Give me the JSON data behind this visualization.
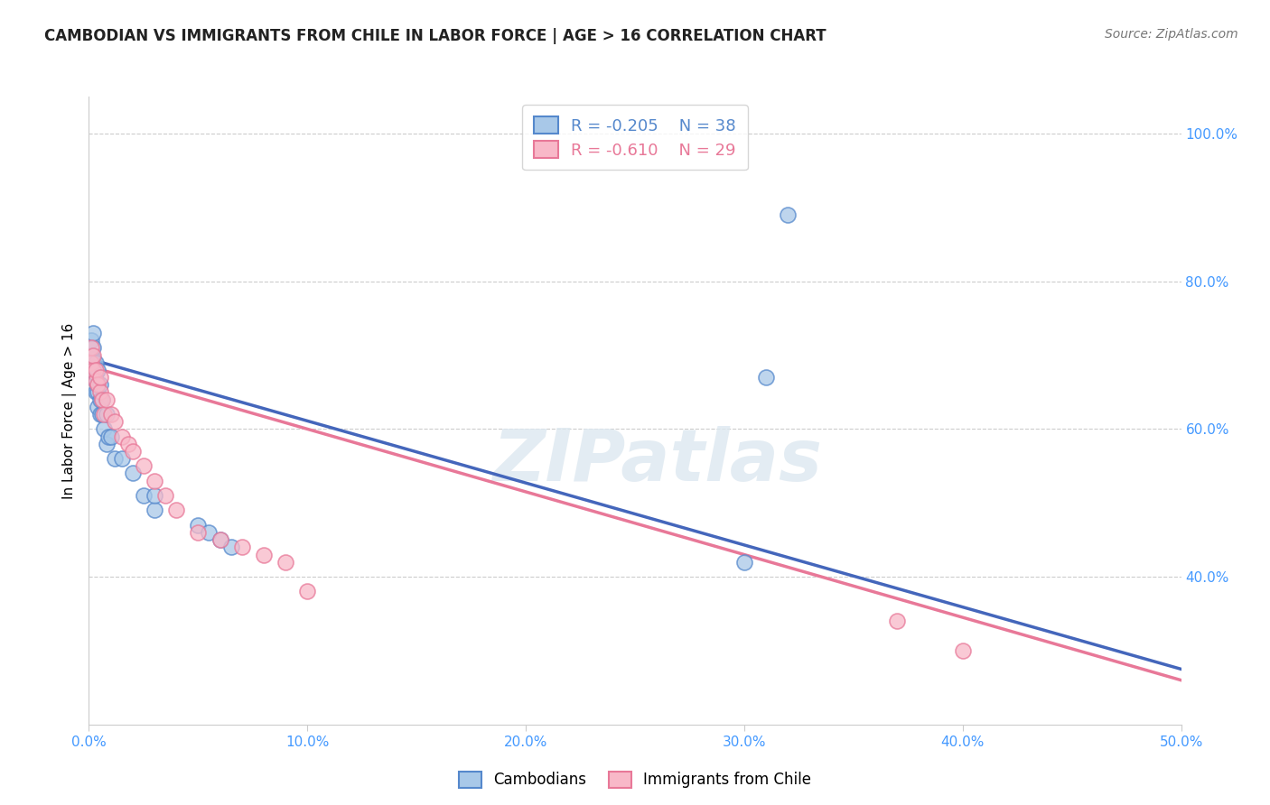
{
  "title": "CAMBODIAN VS IMMIGRANTS FROM CHILE IN LABOR FORCE | AGE > 16 CORRELATION CHART",
  "source": "Source: ZipAtlas.com",
  "ylabel": "In Labor Force | Age > 16",
  "xlim": [
    0.0,
    0.5
  ],
  "ylim": [
    0.2,
    1.05
  ],
  "xticks": [
    0.0,
    0.1,
    0.2,
    0.3,
    0.4,
    0.5
  ],
  "xtick_labels": [
    "0.0%",
    "10.0%",
    "20.0%",
    "30.0%",
    "40.0%",
    "50.0%"
  ],
  "yticks_right": [
    0.4,
    0.6,
    0.8,
    1.0
  ],
  "ytick_labels_right": [
    "40.0%",
    "60.0%",
    "80.0%",
    "100.0%"
  ],
  "blue_fill": "#A8C8E8",
  "blue_edge": "#5588CC",
  "pink_fill": "#F8B8C8",
  "pink_edge": "#E87898",
  "blue_line": "#4466BB",
  "pink_line": "#E87898",
  "legend_label_blue": "Cambodians",
  "legend_label_pink": "Immigrants from Chile",
  "watermark": "ZIPatlas",
  "cambodian_x": [
    0.001,
    0.001,
    0.001,
    0.002,
    0.002,
    0.002,
    0.002,
    0.003,
    0.003,
    0.003,
    0.003,
    0.004,
    0.004,
    0.004,
    0.004,
    0.005,
    0.005,
    0.005,
    0.006,
    0.006,
    0.007,
    0.008,
    0.008,
    0.009,
    0.01,
    0.012,
    0.015,
    0.02,
    0.025,
    0.03,
    0.03,
    0.05,
    0.055,
    0.06,
    0.065,
    0.3,
    0.31,
    0.32
  ],
  "cambodian_y": [
    0.69,
    0.7,
    0.72,
    0.68,
    0.695,
    0.71,
    0.73,
    0.65,
    0.665,
    0.675,
    0.69,
    0.63,
    0.65,
    0.66,
    0.68,
    0.62,
    0.64,
    0.66,
    0.62,
    0.64,
    0.6,
    0.58,
    0.62,
    0.59,
    0.59,
    0.56,
    0.56,
    0.54,
    0.51,
    0.49,
    0.51,
    0.47,
    0.46,
    0.45,
    0.44,
    0.42,
    0.67,
    0.89
  ],
  "chile_x": [
    0.001,
    0.001,
    0.002,
    0.002,
    0.003,
    0.003,
    0.004,
    0.005,
    0.005,
    0.006,
    0.007,
    0.008,
    0.01,
    0.012,
    0.015,
    0.018,
    0.02,
    0.025,
    0.03,
    0.035,
    0.04,
    0.05,
    0.06,
    0.07,
    0.08,
    0.09,
    0.1,
    0.37,
    0.4
  ],
  "chile_y": [
    0.69,
    0.71,
    0.68,
    0.7,
    0.665,
    0.68,
    0.66,
    0.65,
    0.67,
    0.64,
    0.62,
    0.64,
    0.62,
    0.61,
    0.59,
    0.58,
    0.57,
    0.55,
    0.53,
    0.51,
    0.49,
    0.46,
    0.45,
    0.44,
    0.43,
    0.42,
    0.38,
    0.34,
    0.3
  ]
}
